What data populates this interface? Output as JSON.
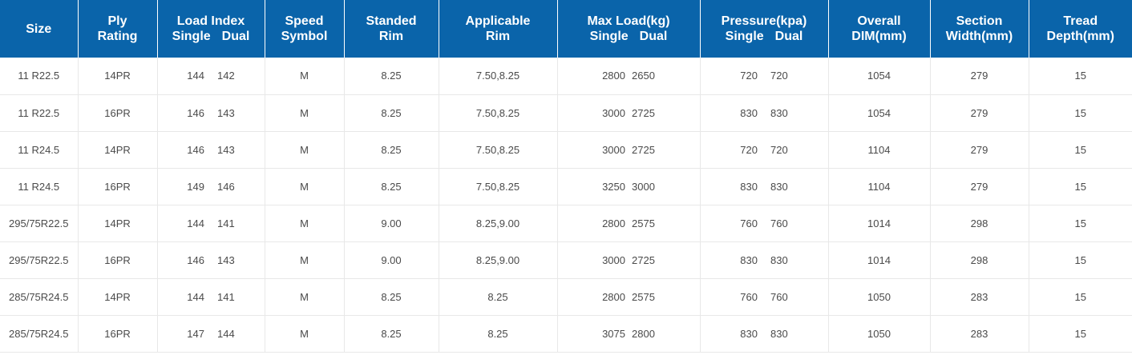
{
  "columns": {
    "size": "Size",
    "ply_rating": [
      "Ply",
      "Rating"
    ],
    "load_index": {
      "title": "Load Index",
      "single": "Single",
      "dual": "Dual"
    },
    "speed_symbol": [
      "Speed",
      "Symbol"
    ],
    "standed_rim": [
      "Standed",
      "Rim"
    ],
    "applicable_rim": [
      "Applicable",
      "Rim"
    ],
    "max_load": {
      "title": "Max Load(kg)",
      "single": "Single",
      "dual": "Dual"
    },
    "pressure": {
      "title": "Pressure(kpa)",
      "single": "Single",
      "dual": "Dual"
    },
    "overall_dim": [
      "Overall",
      "DIM(mm)"
    ],
    "section_width": [
      "Section",
      "Width(mm)"
    ],
    "tread_depth": [
      "Tread",
      "Depth(mm)"
    ]
  },
  "rows": [
    {
      "size": "11 R22.5",
      "ply": "14PR",
      "load_single": "144",
      "load_dual": "142",
      "speed": "M",
      "standed_rim": "8.25",
      "applicable_rim": "7.50,8.25",
      "max_single": "2800",
      "max_dual": "2650",
      "press_single": "720",
      "press_dual": "720",
      "overall_dim": "1054",
      "section_width": "279",
      "tread_depth": "15"
    },
    {
      "size": "11 R22.5",
      "ply": "16PR",
      "load_single": "146",
      "load_dual": "143",
      "speed": "M",
      "standed_rim": "8.25",
      "applicable_rim": "7.50,8.25",
      "max_single": "3000",
      "max_dual": "2725",
      "press_single": "830",
      "press_dual": "830",
      "overall_dim": "1054",
      "section_width": "279",
      "tread_depth": "15"
    },
    {
      "size": "11 R24.5",
      "ply": "14PR",
      "load_single": "146",
      "load_dual": "143",
      "speed": "M",
      "standed_rim": "8.25",
      "applicable_rim": "7.50,8.25",
      "max_single": "3000",
      "max_dual": "2725",
      "press_single": "720",
      "press_dual": "720",
      "overall_dim": "1104",
      "section_width": "279",
      "tread_depth": "15"
    },
    {
      "size": "11 R24.5",
      "ply": "16PR",
      "load_single": "149",
      "load_dual": "146",
      "speed": "M",
      "standed_rim": "8.25",
      "applicable_rim": "7.50,8.25",
      "max_single": "3250",
      "max_dual": "3000",
      "press_single": "830",
      "press_dual": "830",
      "overall_dim": "1104",
      "section_width": "279",
      "tread_depth": "15"
    },
    {
      "size": "295/75R22.5",
      "ply": "14PR",
      "load_single": "144",
      "load_dual": "141",
      "speed": "M",
      "standed_rim": "9.00",
      "applicable_rim": "8.25,9.00",
      "max_single": "2800",
      "max_dual": "2575",
      "press_single": "760",
      "press_dual": "760",
      "overall_dim": "1014",
      "section_width": "298",
      "tread_depth": "15"
    },
    {
      "size": "295/75R22.5",
      "ply": "16PR",
      "load_single": "146",
      "load_dual": "143",
      "speed": "M",
      "standed_rim": "9.00",
      "applicable_rim": "8.25,9.00",
      "max_single": "3000",
      "max_dual": "2725",
      "press_single": "830",
      "press_dual": "830",
      "overall_dim": "1014",
      "section_width": "298",
      "tread_depth": "15"
    },
    {
      "size": "285/75R24.5",
      "ply": "14PR",
      "load_single": "144",
      "load_dual": "141",
      "speed": "M",
      "standed_rim": "8.25",
      "applicable_rim": "8.25",
      "max_single": "2800",
      "max_dual": "2575",
      "press_single": "760",
      "press_dual": "760",
      "overall_dim": "1050",
      "section_width": "283",
      "tread_depth": "15"
    },
    {
      "size": "285/75R24.5",
      "ply": "16PR",
      "load_single": "147",
      "load_dual": "144",
      "speed": "M",
      "standed_rim": "8.25",
      "applicable_rim": "8.25",
      "max_single": "3075",
      "max_dual": "2800",
      "press_single": "830",
      "press_dual": "830",
      "overall_dim": "1050",
      "section_width": "283",
      "tread_depth": "15"
    }
  ]
}
